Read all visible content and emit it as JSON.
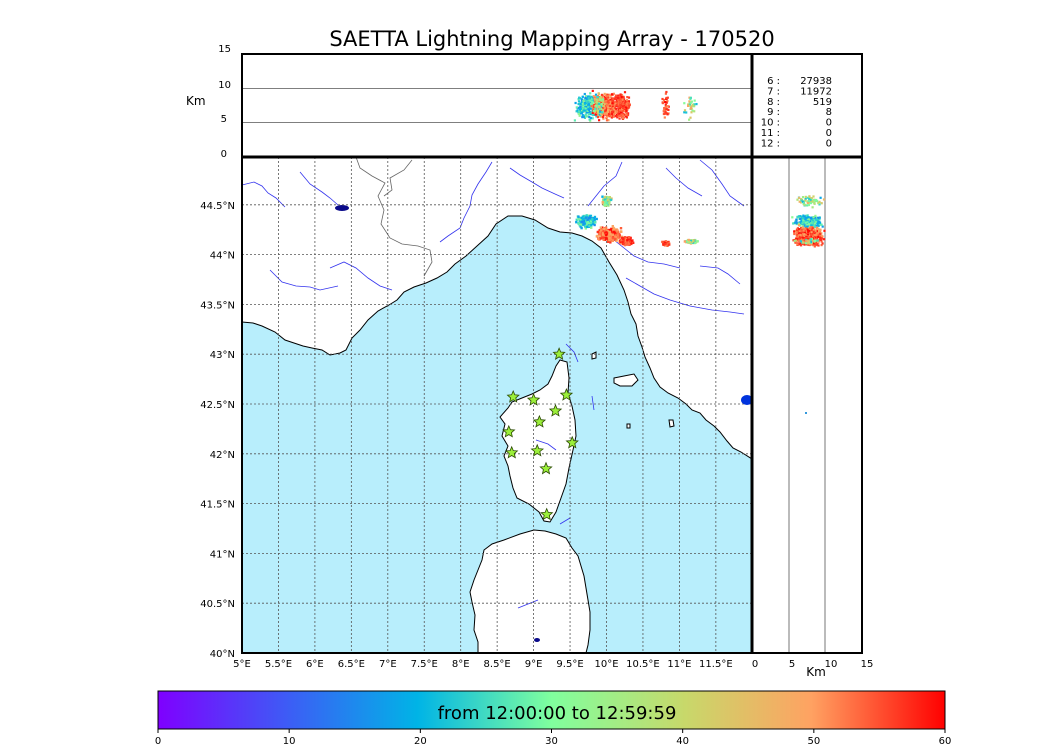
{
  "title": "SAETTA Lightning Mapping Array - 170520",
  "colors": {
    "sea": "#b8eefc",
    "land": "#ffffff",
    "coast": "#000000",
    "rivers": "#3333ee",
    "borders": "#666666",
    "grid": "#555555",
    "station_fill": "#9bef3a",
    "station_edge": "#2a4a00",
    "highlight_stat": "#ff0000"
  },
  "altitude_axis": {
    "label": "Km",
    "ticks": [
      "0",
      "5",
      "10",
      "15"
    ]
  },
  "map": {
    "lon_labels": [
      "5°E",
      "5.5°E",
      "6°E",
      "6.5°E",
      "7°E",
      "7.5°E",
      "8°E",
      "8.5°E",
      "9°E",
      "9.5°E",
      "10°E",
      "10.5°E",
      "11°E",
      "11.5°E"
    ],
    "lat_labels": [
      "40°N",
      "40.5°N",
      "41°N",
      "41.5°N",
      "42°N",
      "42.5°N",
      "43°N",
      "43.5°N",
      "44°N",
      "44.5°N"
    ]
  },
  "stats": [
    {
      "num": "6 :",
      "count": "27938",
      "color": "#000000"
    },
    {
      "num": "7 :",
      "count": "11972",
      "color": "#ff0000"
    },
    {
      "num": "8 :",
      "count": "519",
      "color": "#000000"
    },
    {
      "num": "9 :",
      "count": "8",
      "color": "#000000"
    },
    {
      "num": "10 :",
      "count": "0",
      "color": "#000000"
    },
    {
      "num": "11 :",
      "count": "0",
      "color": "#000000"
    },
    {
      "num": "12 :",
      "count": "0",
      "color": "#000000"
    }
  ],
  "colorbar": {
    "label": "from 12:00:00 to 12:59:59",
    "ticks": [
      "0",
      "10",
      "20",
      "30",
      "40",
      "50",
      "60"
    ],
    "colormap": "rainbow"
  },
  "stations": [
    {
      "lon": 9.35,
      "lat": 43.0
    },
    {
      "lon": 8.72,
      "lat": 42.57
    },
    {
      "lon": 9.0,
      "lat": 42.54
    },
    {
      "lon": 9.45,
      "lat": 42.59
    },
    {
      "lon": 9.3,
      "lat": 42.43
    },
    {
      "lon": 9.08,
      "lat": 42.32
    },
    {
      "lon": 8.66,
      "lat": 42.22
    },
    {
      "lon": 9.53,
      "lat": 42.11
    },
    {
      "lon": 8.7,
      "lat": 42.01
    },
    {
      "lon": 9.05,
      "lat": 42.03
    },
    {
      "lon": 9.17,
      "lat": 41.85
    },
    {
      "lon": 9.18,
      "lat": 41.39
    }
  ]
}
